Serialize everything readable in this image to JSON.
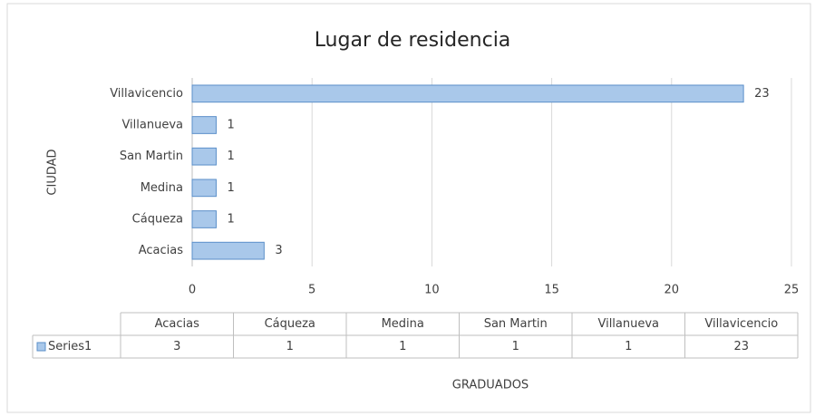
{
  "chart_data": {
    "type": "bar",
    "orientation": "horizontal",
    "title": "Lugar de residencia",
    "x_label": "GRADUADOS",
    "y_label": "CIUDAD",
    "categories": [
      "Acacias",
      "Cáqueza",
      "Medina",
      "San Martin",
      "Villanueva",
      "Villavicencio"
    ],
    "series": [
      {
        "name": "Series1",
        "color": "#a9c8ea",
        "values": [
          3,
          1,
          1,
          1,
          1,
          23
        ]
      }
    ],
    "xlim": [
      0,
      25
    ],
    "xticks": [
      0,
      5,
      10,
      15,
      20,
      25
    ],
    "grid": true,
    "data_table": true
  }
}
